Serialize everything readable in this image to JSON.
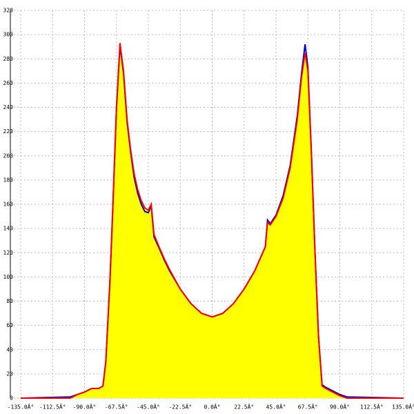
{
  "chart_data": {
    "type": "area",
    "x": [
      -135,
      -100,
      -95,
      -90,
      -85,
      -80,
      -77,
      -75,
      -72,
      -70,
      -67.5,
      -65,
      -62.5,
      -60,
      -57.5,
      -55,
      -52.5,
      -50,
      -47.5,
      -45,
      -43,
      -41,
      -37.5,
      -33.75,
      -30,
      -22.5,
      -15,
      -7.5,
      0,
      7.5,
      15,
      22.5,
      30,
      33.75,
      37.5,
      39,
      41,
      45,
      50,
      55,
      60,
      63,
      65.5,
      67.5,
      70,
      72.5,
      75,
      77.5,
      80,
      85,
      90,
      95,
      135
    ],
    "series": [
      {
        "color": "#0000cc",
        "values": [
          0,
          1,
          3,
          5,
          8,
          8,
          10,
          30,
          98,
          158,
          238,
          291,
          268,
          228,
          203,
          182,
          169,
          160,
          154,
          153,
          159,
          133,
          124,
          114,
          105,
          90,
          78,
          70,
          67,
          70,
          78,
          90,
          105,
          115,
          125,
          147,
          144,
          151,
          167,
          192,
          233,
          268,
          292,
          273,
          202,
          121,
          51,
          11,
          9,
          6,
          3,
          1,
          0
        ]
      },
      {
        "color": "#ff0000",
        "values": [
          0,
          0,
          3,
          5,
          8,
          8,
          10,
          30,
          100,
          160,
          240,
          293,
          270,
          230,
          205,
          185,
          172,
          163,
          157,
          155,
          160,
          135,
          125,
          115,
          106,
          90,
          78,
          70,
          67,
          70,
          78,
          90,
          105,
          115,
          125,
          145,
          143,
          150,
          165,
          190,
          230,
          265,
          285,
          270,
          200,
          120,
          50,
          10,
          8,
          5,
          2,
          0,
          0
        ]
      }
    ],
    "fill_color": "#ffff00",
    "xlim": [
      -135,
      135
    ],
    "xticks": [
      {
        "value": -135,
        "label": "-135.0Â°"
      },
      {
        "value": -112.5,
        "label": "-112.5Â°"
      },
      {
        "value": -90,
        "label": "-90.0Â°"
      },
      {
        "value": -67.5,
        "label": "-67.5Â°"
      },
      {
        "value": -45,
        "label": "-45.0Â°"
      },
      {
        "value": -22.5,
        "label": "-22.5Â°"
      },
      {
        "value": 0,
        "label": "0.0Â°"
      },
      {
        "value": 22.5,
        "label": "22.5Â°"
      },
      {
        "value": 45,
        "label": "45.0Â°"
      },
      {
        "value": 67.5,
        "label": "67.5Â°"
      },
      {
        "value": 90,
        "label": "90.0Â°"
      },
      {
        "value": 112.5,
        "label": "112.5Â°"
      },
      {
        "value": 135,
        "label": "135.0Â°"
      }
    ],
    "ylim": [
      0,
      320
    ],
    "yticks": [
      0,
      20,
      40,
      60,
      80,
      100,
      120,
      140,
      160,
      180,
      200,
      220,
      240,
      260,
      280,
      300,
      320
    ],
    "grid": true
  }
}
